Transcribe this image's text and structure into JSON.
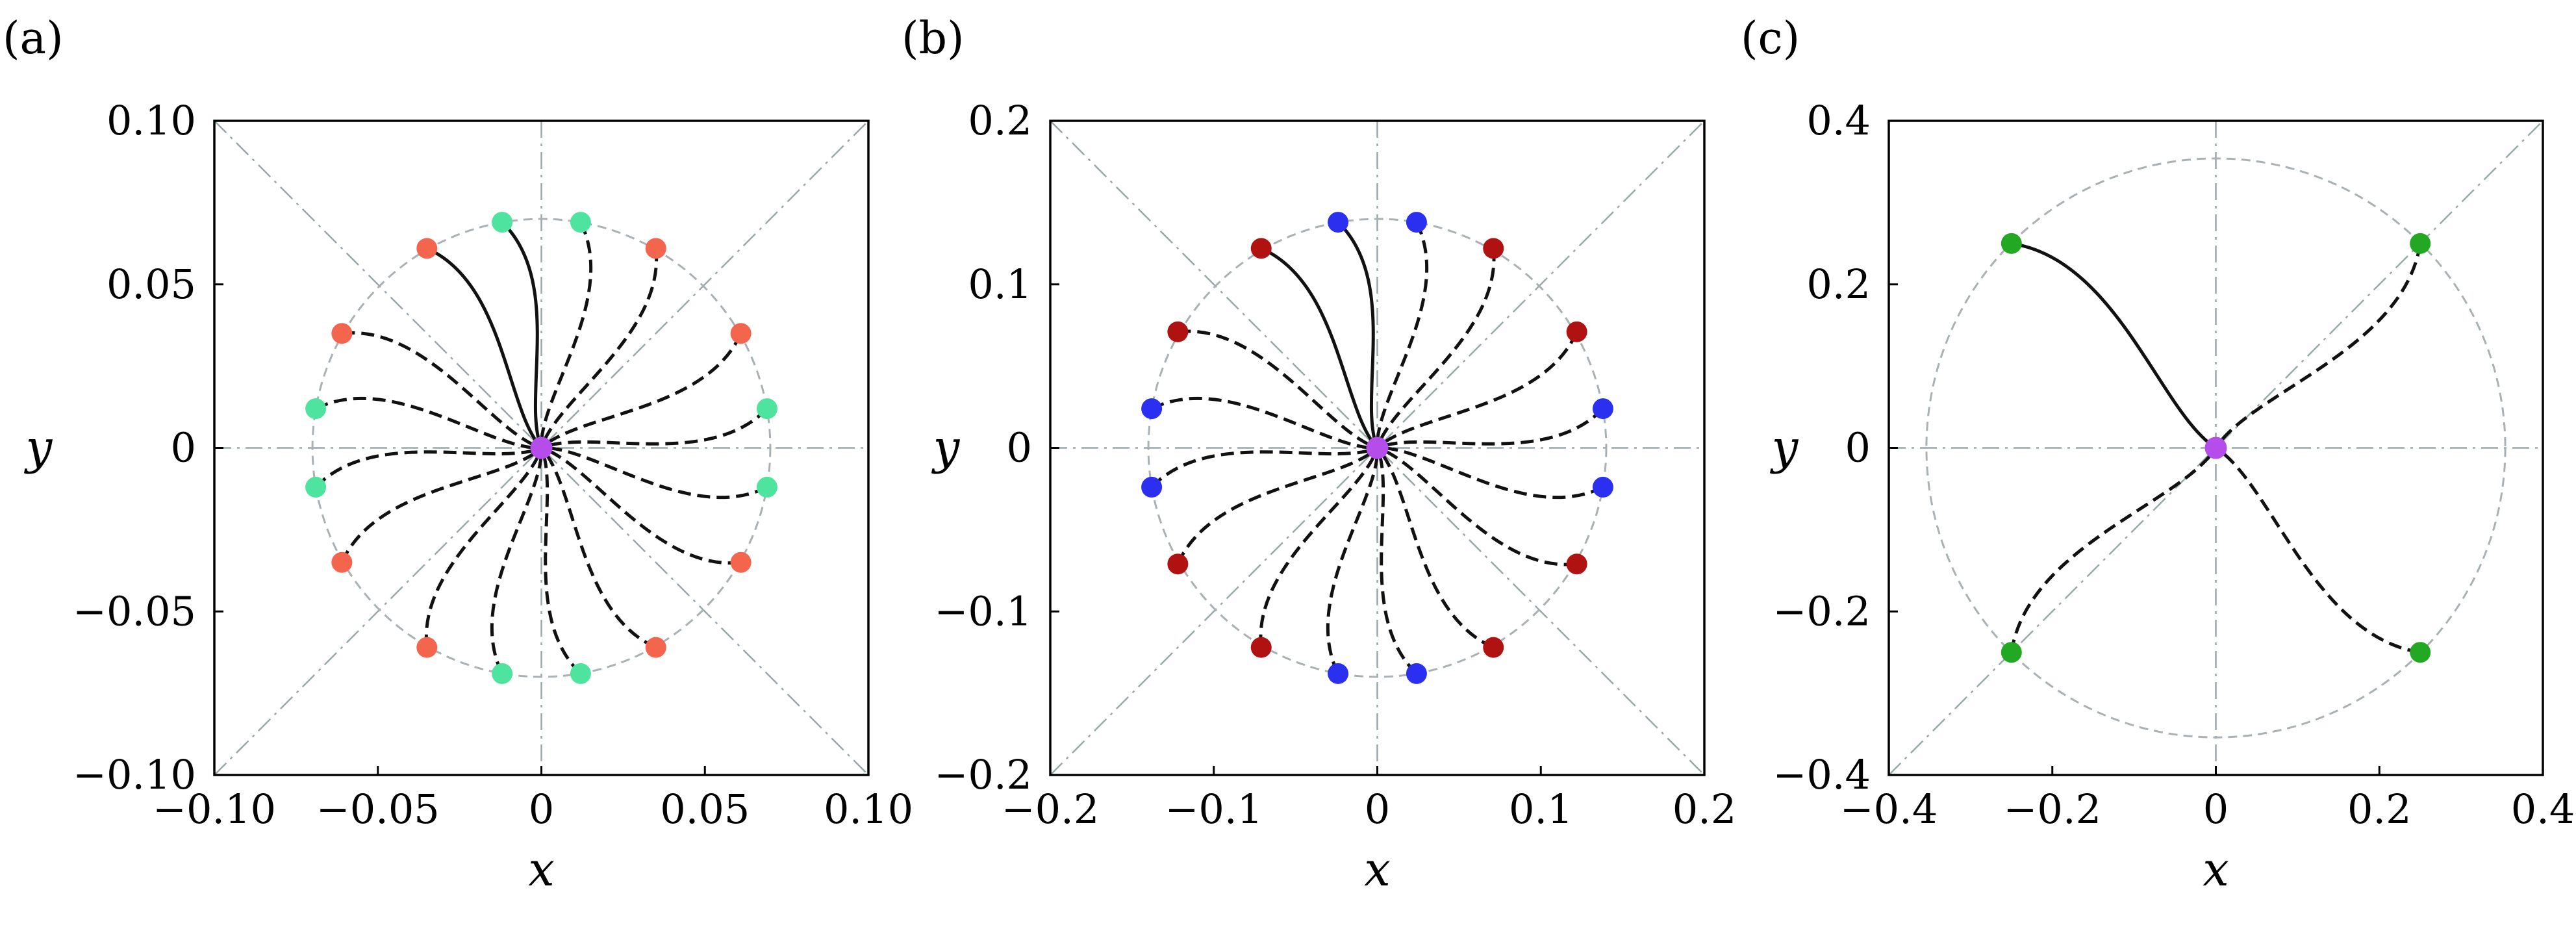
{
  "chart_data": [
    {
      "type": "scatter",
      "panel_label": "(a)",
      "xlabel": "x",
      "ylabel": "y",
      "xlim": [
        -0.1,
        0.1
      ],
      "ylim": [
        -0.1,
        0.1
      ],
      "xticks": [
        -0.1,
        -0.05,
        0,
        0.05,
        0.1
      ],
      "yticks": [
        -0.1,
        -0.05,
        0,
        0.05,
        0.1
      ],
      "xtick_labels": [
        "−0.10",
        "−0.05",
        "0",
        "0.05",
        "0.10"
      ],
      "ytick_labels": [
        "−0.10",
        "−0.05",
        "0",
        "0.05",
        "0.10"
      ],
      "reference_circle_radius": 0.07,
      "center": {
        "x": 0,
        "y": 0,
        "color": "#b44dea"
      },
      "guide_lines": [
        "x=0",
        "y=0",
        "y=x",
        "y=-x"
      ],
      "points": [
        {
          "x": -0.012,
          "y": 0.069,
          "color": "#4fe3a0",
          "curve": "solid"
        },
        {
          "x": -0.035,
          "y": 0.061,
          "color": "#f4654e",
          "curve": "solid"
        },
        {
          "x": 0.012,
          "y": 0.069,
          "color": "#4fe3a0",
          "curve": "dashed"
        },
        {
          "x": 0.035,
          "y": 0.061,
          "color": "#f4654e",
          "curve": "dashed"
        },
        {
          "x": 0.061,
          "y": 0.035,
          "color": "#f4654e",
          "curve": "dashed"
        },
        {
          "x": 0.069,
          "y": 0.012,
          "color": "#4fe3a0",
          "curve": "dashed"
        },
        {
          "x": 0.069,
          "y": -0.012,
          "color": "#4fe3a0",
          "curve": "dashed"
        },
        {
          "x": 0.061,
          "y": -0.035,
          "color": "#f4654e",
          "curve": "dashed"
        },
        {
          "x": 0.035,
          "y": -0.061,
          "color": "#f4654e",
          "curve": "dashed"
        },
        {
          "x": 0.012,
          "y": -0.069,
          "color": "#4fe3a0",
          "curve": "dashed"
        },
        {
          "x": -0.012,
          "y": -0.069,
          "color": "#4fe3a0",
          "curve": "dashed"
        },
        {
          "x": -0.035,
          "y": -0.061,
          "color": "#f4654e",
          "curve": "dashed"
        },
        {
          "x": -0.061,
          "y": -0.035,
          "color": "#f4654e",
          "curve": "dashed"
        },
        {
          "x": -0.069,
          "y": -0.012,
          "color": "#4fe3a0",
          "curve": "dashed"
        },
        {
          "x": -0.069,
          "y": 0.012,
          "color": "#4fe3a0",
          "curve": "dashed"
        },
        {
          "x": -0.061,
          "y": 0.035,
          "color": "#f4654e",
          "curve": "dashed"
        }
      ]
    },
    {
      "type": "scatter",
      "panel_label": "(b)",
      "xlabel": "x",
      "ylabel": "y",
      "xlim": [
        -0.2,
        0.2
      ],
      "ylim": [
        -0.2,
        0.2
      ],
      "xticks": [
        -0.2,
        -0.1,
        0,
        0.1,
        0.2
      ],
      "yticks": [
        -0.2,
        -0.1,
        0,
        0.1,
        0.2
      ],
      "xtick_labels": [
        "−0.2",
        "−0.1",
        "0",
        "0.1",
        "0.2"
      ],
      "ytick_labels": [
        "−0.2",
        "−0.1",
        "0",
        "0.1",
        "0.2"
      ],
      "reference_circle_radius": 0.14,
      "center": {
        "x": 0,
        "y": 0,
        "color": "#b44dea"
      },
      "guide_lines": [
        "x=0",
        "y=0",
        "y=x",
        "y=-x"
      ],
      "points": [
        {
          "x": -0.024,
          "y": 0.138,
          "color": "#2b2ff0",
          "curve": "solid"
        },
        {
          "x": -0.071,
          "y": 0.122,
          "color": "#b01212",
          "curve": "solid"
        },
        {
          "x": 0.024,
          "y": 0.138,
          "color": "#2b2ff0",
          "curve": "dashed"
        },
        {
          "x": 0.071,
          "y": 0.122,
          "color": "#b01212",
          "curve": "dashed"
        },
        {
          "x": 0.122,
          "y": 0.071,
          "color": "#b01212",
          "curve": "dashed"
        },
        {
          "x": 0.138,
          "y": 0.024,
          "color": "#2b2ff0",
          "curve": "dashed"
        },
        {
          "x": 0.138,
          "y": -0.024,
          "color": "#2b2ff0",
          "curve": "dashed"
        },
        {
          "x": 0.122,
          "y": -0.071,
          "color": "#b01212",
          "curve": "dashed"
        },
        {
          "x": 0.071,
          "y": -0.122,
          "color": "#b01212",
          "curve": "dashed"
        },
        {
          "x": 0.024,
          "y": -0.138,
          "color": "#2b2ff0",
          "curve": "dashed"
        },
        {
          "x": -0.024,
          "y": -0.138,
          "color": "#2b2ff0",
          "curve": "dashed"
        },
        {
          "x": -0.071,
          "y": -0.122,
          "color": "#b01212",
          "curve": "dashed"
        },
        {
          "x": -0.122,
          "y": -0.071,
          "color": "#b01212",
          "curve": "dashed"
        },
        {
          "x": -0.138,
          "y": -0.024,
          "color": "#2b2ff0",
          "curve": "dashed"
        },
        {
          "x": -0.138,
          "y": 0.024,
          "color": "#2b2ff0",
          "curve": "dashed"
        },
        {
          "x": -0.122,
          "y": 0.071,
          "color": "#b01212",
          "curve": "dashed"
        }
      ]
    },
    {
      "type": "scatter",
      "panel_label": "(c)",
      "xlabel": "x",
      "ylabel": "y",
      "xlim": [
        -0.4,
        0.4
      ],
      "ylim": [
        -0.4,
        0.4
      ],
      "xticks": [
        -0.4,
        -0.2,
        0,
        0.2,
        0.4
      ],
      "yticks": [
        -0.4,
        -0.2,
        0,
        0.2,
        0.4
      ],
      "xtick_labels": [
        "−0.4",
        "−0.2",
        "0",
        "0.2",
        "0.4"
      ],
      "ytick_labels": [
        "−0.4",
        "−0.2",
        "0",
        "0.2",
        "0.4"
      ],
      "reference_circle_radius": 0.354,
      "center": {
        "x": 0,
        "y": 0,
        "color": "#b44dea"
      },
      "guide_lines": [
        "x=0",
        "y=0",
        "y=x"
      ],
      "points": [
        {
          "x": -0.25,
          "y": 0.25,
          "color": "#22a822",
          "curve": "solid"
        },
        {
          "x": 0.25,
          "y": 0.25,
          "color": "#22a822",
          "curve": "dashed"
        },
        {
          "x": 0.25,
          "y": -0.25,
          "color": "#22a822",
          "curve": "dashed"
        },
        {
          "x": -0.25,
          "y": -0.25,
          "color": "#22a822",
          "curve": "dashed"
        }
      ]
    }
  ]
}
